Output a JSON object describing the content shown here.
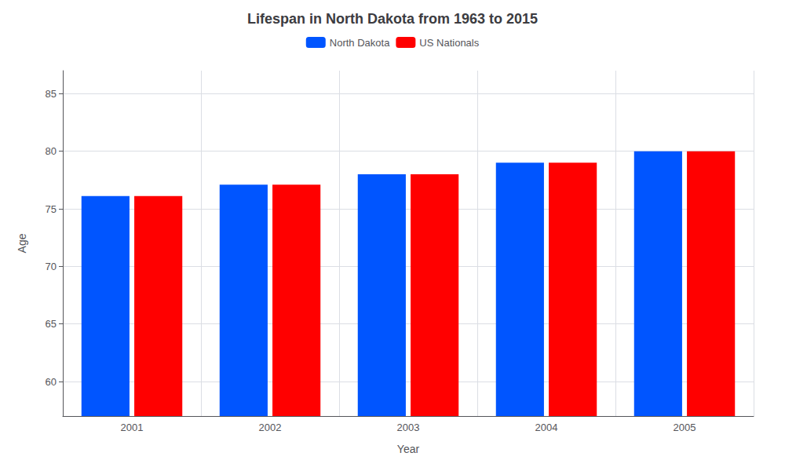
{
  "chart_data": {
    "type": "bar",
    "title": "Lifespan in North Dakota from 1963 to 2015",
    "x_label": "Year",
    "y_label": "Age",
    "categories": [
      "2001",
      "2002",
      "2003",
      "2004",
      "2005"
    ],
    "series": [
      {
        "name": "North Dakota",
        "color": "#0055ff",
        "values": [
          76.1,
          77.1,
          78.0,
          79.0,
          80.0
        ]
      },
      {
        "name": "US Nationals",
        "color": "#ff0000",
        "values": [
          76.1,
          77.1,
          78.0,
          79.0,
          80.0
        ]
      }
    ],
    "ylim": [
      57,
      87
    ],
    "yticks": [
      60,
      65,
      70,
      75,
      80,
      85
    ],
    "grid": true,
    "legend": "top"
  }
}
